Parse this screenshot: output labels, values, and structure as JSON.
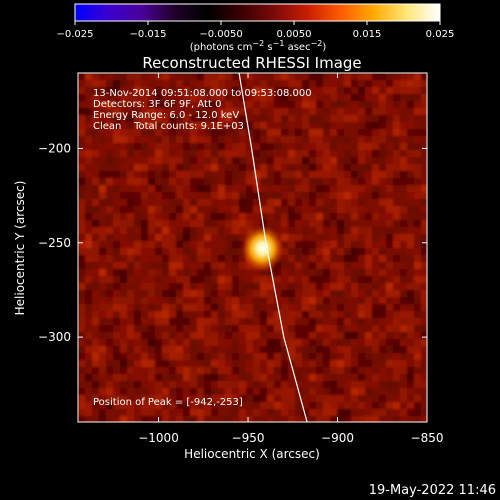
{
  "chart_data": {
    "type": "heatmap",
    "title": "Reconstructed RHESSI Image",
    "colorbar": {
      "range": [
        -0.025,
        0.025
      ],
      "ticks": [
        -0.025,
        -0.015,
        -0.005,
        0.005,
        0.015,
        0.025
      ],
      "tick_labels": [
        "−0.025",
        "−0.015",
        "−0.0050",
        "0.0050",
        "0.015",
        "0.025"
      ],
      "units_prefix": "(photons cm",
      "units_exp1": "−2",
      "units_mid1": " s",
      "units_exp2": "−1",
      "units_mid2": " asec",
      "units_exp3": "−2",
      "units_suffix": ")",
      "colors": [
        "#0000ff",
        "#3a00d0",
        "#4a009a",
        "#200028",
        "#000000",
        "#3a0000",
        "#7a0a0a",
        "#c81e00",
        "#ff5a00",
        "#ffaa00",
        "#ffe67a",
        "#ffffff"
      ]
    },
    "xlabel": "Heliocentric X (arcsec)",
    "ylabel": "Heliocentric Y (arcsec)",
    "xlim": [
      -1045,
      -850
    ],
    "ylim": [
      -345,
      -160
    ],
    "x_ticks": [
      -1000,
      -950,
      -900,
      -850
    ],
    "x_tick_labels": [
      "−1000",
      "−950",
      "−900",
      "−850"
    ],
    "y_ticks": [
      -200,
      -250,
      -300
    ],
    "y_tick_labels": [
      "−200",
      "−250",
      "−300"
    ],
    "source": {
      "x": -942,
      "y": -253
    },
    "limb": [
      [
        -955,
        -160
      ],
      [
        -948,
        -200
      ],
      [
        -940,
        -250
      ],
      [
        -930,
        -300
      ],
      [
        -917,
        -345
      ]
    ],
    "annotations": {
      "time_range": "13-Nov-2014 09:51:08.000 to 09:53:08.000",
      "detectors": "Detectors: 3F 6F 9F, Att 0",
      "energy": "Energy Range: 6.0 - 12.0 keV",
      "method": "Clean    Total counts: 9.1E+03",
      "peak": "Position of Peak = [-942,-253]"
    }
  },
  "footer_date": "19-May-2022 11:46"
}
